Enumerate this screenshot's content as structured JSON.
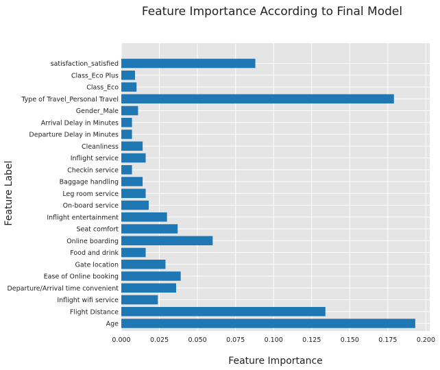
{
  "chart_data": {
    "type": "bar",
    "orientation": "horizontal",
    "title": "Feature Importance According to Final Model",
    "xlabel": "Feature Importance",
    "ylabel": "Feature Label",
    "xlim": [
      0,
      0.2025
    ],
    "xticks": [
      "0.000",
      "0.025",
      "0.050",
      "0.075",
      "0.100",
      "0.125",
      "0.150",
      "0.175",
      "0.200"
    ],
    "grid": true,
    "bar_color": "#1f77b4",
    "background_color": "#e5e5e5",
    "categories": [
      "Age",
      "Flight Distance",
      "Inflight wifi service",
      "Departure/Arrival time convenient",
      "Ease of Online booking",
      "Gate location",
      "Food and drink",
      "Online boarding",
      "Seat comfort",
      "Inflight entertainment",
      "On-board service",
      "Leg room service",
      "Baggage handling",
      "Checkin service",
      "Inflight service",
      "Cleanliness",
      "Departure Delay in Minutes",
      "Arrival Delay in Minutes",
      "Gender_Male",
      "Type of Travel_Personal Travel",
      "Class_Eco",
      "Class_Eco Plus",
      "satisfaction_satisfied"
    ],
    "values": [
      0.193,
      0.134,
      0.024,
      0.036,
      0.039,
      0.029,
      0.016,
      0.06,
      0.037,
      0.03,
      0.018,
      0.016,
      0.014,
      0.007,
      0.016,
      0.014,
      0.007,
      0.007,
      0.011,
      0.179,
      0.01,
      0.009,
      0.088
    ]
  }
}
